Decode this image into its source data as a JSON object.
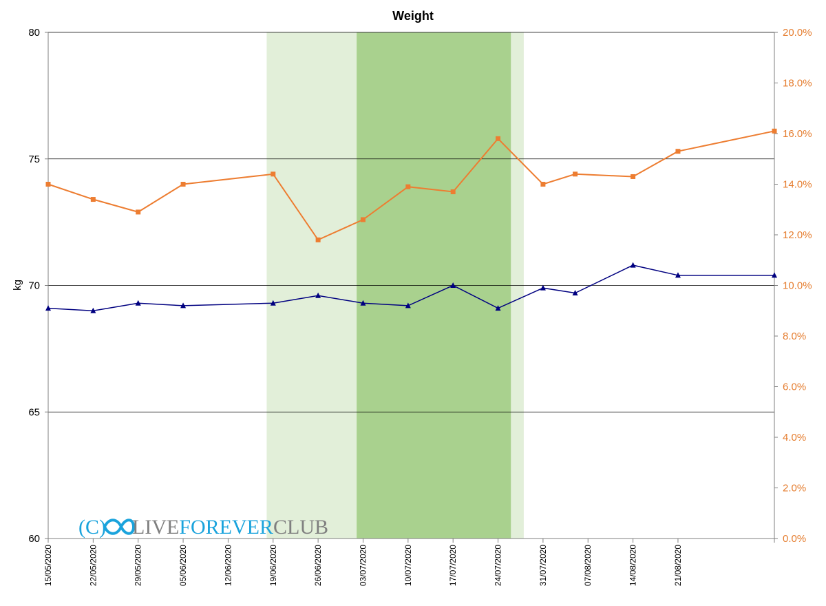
{
  "chart_data": {
    "type": "line",
    "title": "Weight",
    "ylabel": "kg",
    "ylabel_right": "",
    "ylim": [
      60,
      80
    ],
    "ylim_right": [
      0,
      20
    ],
    "y_ticks": [
      "60",
      "65",
      "70",
      "75",
      "80"
    ],
    "y_ticks_right": [
      "0.0%",
      "2.0%",
      "4.0%",
      "6.0%",
      "8.0%",
      "10.0%",
      "12.0%",
      "14.0%",
      "16.0%",
      "18.0%",
      "20.0%"
    ],
    "x_ticks": [
      "15/05/2020",
      "22/05/2020",
      "29/05/2020",
      "05/06/2020",
      "12/06/2020",
      "19/06/2020",
      "26/06/2020",
      "03/07/2020",
      "10/07/2020",
      "17/07/2020",
      "24/07/2020",
      "31/07/2020",
      "07/08/2020",
      "14/08/2020",
      "21/08/2020"
    ],
    "x_range": [
      "15/05/2020",
      "05/09/2020"
    ],
    "grid": "horizontal",
    "bands": [
      {
        "start": "18/06/2020",
        "end": "28/07/2020",
        "color": "#e2efd9"
      },
      {
        "start": "02/07/2020",
        "end": "26/07/2020",
        "color": "#a9d18e"
      }
    ],
    "series": [
      {
        "axis": "left",
        "color": "#000080",
        "marker": "triangle",
        "x": [
          "15/05/2020",
          "22/05/2020",
          "29/05/2020",
          "05/06/2020",
          "19/06/2020",
          "26/06/2020",
          "03/07/2020",
          "10/07/2020",
          "17/07/2020",
          "24/07/2020",
          "31/07/2020",
          "05/08/2020",
          "14/08/2020",
          "21/08/2020",
          "05/09/2020"
        ],
        "y": [
          69.1,
          69.0,
          69.3,
          69.2,
          69.3,
          69.6,
          69.3,
          69.2,
          70.0,
          69.1,
          69.9,
          69.7,
          70.8,
          70.4,
          70.4
        ]
      },
      {
        "axis": "right",
        "color": "#ed7d31",
        "marker": "square",
        "x": [
          "15/05/2020",
          "22/05/2020",
          "29/05/2020",
          "05/06/2020",
          "19/06/2020",
          "26/06/2020",
          "03/07/2020",
          "10/07/2020",
          "17/07/2020",
          "24/07/2020",
          "31/07/2020",
          "05/08/2020",
          "14/08/2020",
          "21/08/2020",
          "05/09/2020"
        ],
        "y": [
          14.0,
          13.4,
          12.9,
          14.0,
          14.4,
          11.8,
          12.6,
          13.9,
          13.7,
          15.8,
          14.0,
          14.4,
          14.3,
          15.3,
          16.1
        ]
      }
    ]
  },
  "watermark": {
    "prefix": "(C)",
    "word1": "LIVE",
    "word2": "FOREVER",
    "word3": "CLUB",
    "color1": "#7f7f7f",
    "color2": "#1aa3dc",
    "color3": "#7f7f7f"
  }
}
